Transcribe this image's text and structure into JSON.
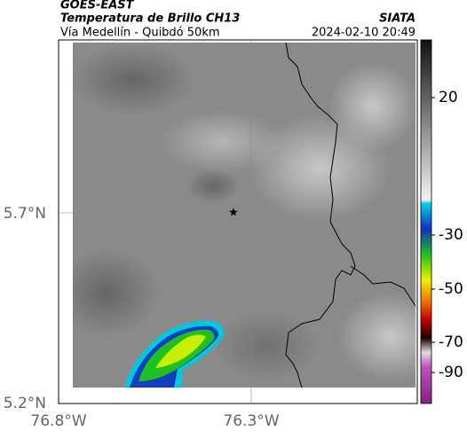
{
  "header": {
    "source": "GOES-EAST",
    "title": "Temperatura de Brillo CH13",
    "subtitle": "Vía Medellín - Quibdó 50km",
    "org": "SIATA",
    "timestamp": "2024-02-10 20:49"
  },
  "map": {
    "x_labels": [
      "76.8°W",
      "76.3°W"
    ],
    "y_labels": [
      "5.7°N",
      "5.2°N"
    ]
  },
  "colorbar": {
    "labels": [
      "20",
      "-30",
      "-50",
      "-70",
      "-90"
    ]
  }
}
